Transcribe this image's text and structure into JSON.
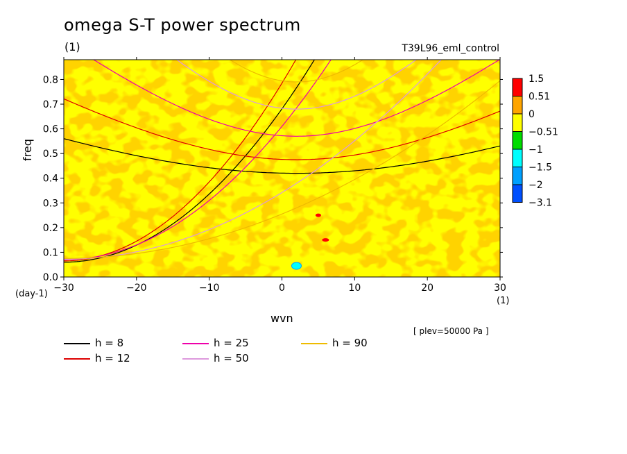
{
  "chart_data": {
    "type": "heatmap",
    "title": "omega S-T power spectrum",
    "subtitle": "(1)",
    "run_name": "T39L96_eml_control",
    "xlabel": "wvn",
    "xunit": "(1)",
    "ylabel": "freq",
    "yunit": "(day-1)",
    "xlim": [
      -30,
      30
    ],
    "ylim": [
      0,
      0.88
    ],
    "xticks": [
      "-30",
      "-20",
      "-10",
      "0",
      "10",
      "20",
      "30"
    ],
    "yticks": [
      "0.0",
      "0.1",
      "0.2",
      "0.3",
      "0.4",
      "0.5",
      "0.6",
      "0.7",
      "0.8"
    ],
    "annotation": "[ plev=50000 Pa ]",
    "colorbar": {
      "labels": [
        "1.5",
        "0.51",
        "0",
        "-0.51",
        "-1",
        "-1.5",
        "-2",
        "-3.1"
      ],
      "colors": [
        "#ff0000",
        "#ffa500",
        "#ffff00",
        "#00dd00",
        "#00ffff",
        "#00a0ff",
        "#0050ff"
      ],
      "dominant": [
        "#ffa500",
        "#ffff00"
      ]
    },
    "series": [
      {
        "name": "h =  8",
        "color": "#000000"
      },
      {
        "name": "h = 12",
        "color": "#dd0000"
      },
      {
        "name": "h = 25",
        "color": "#ee00aa"
      },
      {
        "name": "h = 50",
        "color": "#dd99dd"
      },
      {
        "name": "h = 90",
        "color": "#eebb00"
      }
    ],
    "legend_position": "bottom-left"
  }
}
